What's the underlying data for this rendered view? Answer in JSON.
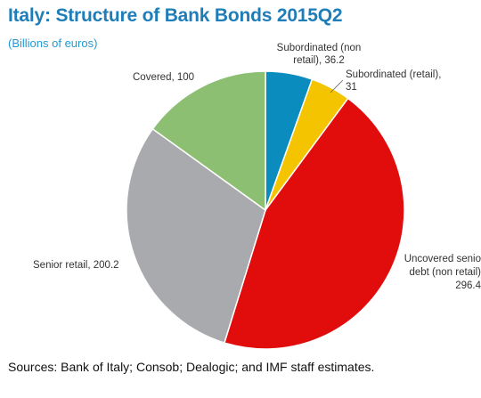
{
  "title": "Italy: Structure of Bank Bonds 2015Q2",
  "subtitle": "(Billions of euros)",
  "source": "Sources: Bank of Italy; Consob; Dealogic; and IMF staff estimates.",
  "chart_data": {
    "type": "pie",
    "title": "Italy: Structure of Bank Bonds 2015Q2",
    "subtitle": "(Billions of euros)",
    "slices": [
      {
        "label": "Subordinated (non retail)",
        "value": 36.2,
        "color": "#0a8cbf",
        "label_lines": [
          "Subordinated (non",
          "retail), 36.2"
        ]
      },
      {
        "label": "Subordinated (retail)",
        "value": 31,
        "color": "#f5c400",
        "label_lines": [
          "Subordinated (retail),",
          "31"
        ]
      },
      {
        "label": "Uncovered senior debt (non retail)",
        "value": 296.4,
        "color": "#e10d0d",
        "label_lines": [
          "Uncovered senio",
          "debt (non retail)",
          "296.4"
        ]
      },
      {
        "label": "Senior retail",
        "value": 200.2,
        "color": "#a9aaad",
        "label_lines": [
          "Senior retail, 200.2"
        ]
      },
      {
        "label": "Covered",
        "value": 100,
        "color": "#8dbf73",
        "label_lines": [
          "Covered, 100"
        ]
      }
    ],
    "start": "12 o'clock",
    "direction": "clockwise",
    "legend": "none"
  }
}
